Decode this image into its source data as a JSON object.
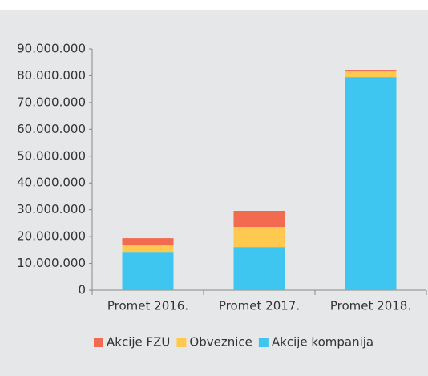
{
  "chart_data": {
    "type": "stacked_bar",
    "categories": [
      "Promet 2016.",
      "Promet 2017.",
      "Promet 2018."
    ],
    "series": [
      {
        "name": "Akcije FZU",
        "color": "#f26a4f",
        "values": [
          2700000,
          6000000,
          600000
        ]
      },
      {
        "name": "Obveznice",
        "color": "#ffc94f",
        "values": [
          2400000,
          7500000,
          2100000
        ]
      },
      {
        "name": "Akcije kompanija",
        "color": "#3ec6f0",
        "values": [
          14300000,
          16100000,
          79500000
        ]
      }
    ],
    "ylim": [
      0,
      90000000
    ],
    "yticks": [
      0,
      {
        "value": 10000000,
        "label": "10.000.000"
      },
      {
        "value": 20000000,
        "label": "20.000.000"
      },
      {
        "value": 30000000,
        "label": "30.000.000"
      },
      {
        "value": 40000000,
        "label": "40.000.000"
      },
      {
        "value": 50000000,
        "label": "50.000.000"
      },
      {
        "value": 60000000,
        "label": "60.000.000"
      },
      {
        "value": 70000000,
        "label": "70.000.000"
      },
      {
        "value": 80000000,
        "label": "80.000.000"
      },
      {
        "value": 90000000,
        "label": "90.000.000"
      }
    ],
    "legend": "bottom"
  }
}
